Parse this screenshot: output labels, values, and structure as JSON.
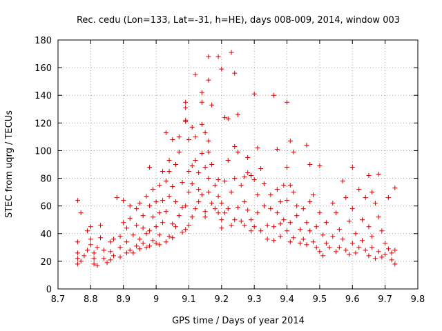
{
  "chart_data": {
    "type": "scatter",
    "title": "Rec. cedu (Lon=133, Lat=-31, h=HE), days 008-009, 2014, window 003",
    "xlabel": "GPS time / Days of year 2014",
    "ylabel": "STEC from uqrg / TECUs",
    "xlim": [
      8.7,
      9.8
    ],
    "ylim": [
      0,
      180
    ],
    "x_ticks": [
      "8.7",
      "8.8",
      "8.9",
      "9",
      "9.1",
      "9.2",
      "9.3",
      "9.4",
      "9.5",
      "9.6",
      "9.7",
      "9.8"
    ],
    "y_ticks": [
      "0",
      "20",
      "40",
      "60",
      "80",
      "100",
      "120",
      "140",
      "160",
      "180"
    ],
    "marker": "+",
    "color": "#cc0000",
    "series": [
      {
        "name": "STEC",
        "points": [
          [
            8.76,
            64
          ],
          [
            8.77,
            55
          ],
          [
            8.76,
            34
          ],
          [
            8.76,
            26
          ],
          [
            8.76,
            22
          ],
          [
            8.76,
            18
          ],
          [
            8.77,
            20
          ],
          [
            8.78,
            24
          ],
          [
            8.79,
            28
          ],
          [
            8.79,
            42
          ],
          [
            8.8,
            45
          ],
          [
            8.8,
            36
          ],
          [
            8.8,
            32
          ],
          [
            8.81,
            26
          ],
          [
            8.81,
            22
          ],
          [
            8.81,
            18
          ],
          [
            8.82,
            17
          ],
          [
            8.82,
            30
          ],
          [
            8.83,
            37
          ],
          [
            8.83,
            46
          ],
          [
            8.84,
            28
          ],
          [
            8.84,
            22
          ],
          [
            8.85,
            19
          ],
          [
            8.86,
            21
          ],
          [
            8.86,
            27
          ],
          [
            8.86,
            34
          ],
          [
            8.87,
            24
          ],
          [
            8.87,
            36
          ],
          [
            8.88,
            66
          ],
          [
            8.89,
            30
          ],
          [
            8.89,
            38
          ],
          [
            8.89,
            23
          ],
          [
            8.9,
            64
          ],
          [
            8.9,
            48
          ],
          [
            8.91,
            26
          ],
          [
            8.91,
            34
          ],
          [
            8.91,
            44
          ],
          [
            8.92,
            60
          ],
          [
            8.92,
            51
          ],
          [
            8.92,
            28
          ],
          [
            8.93,
            39
          ],
          [
            8.93,
            26
          ],
          [
            8.94,
            58
          ],
          [
            8.94,
            46
          ],
          [
            8.94,
            31
          ],
          [
            8.95,
            62
          ],
          [
            8.95,
            36
          ],
          [
            8.95,
            29
          ],
          [
            8.96,
            53
          ],
          [
            8.96,
            44
          ],
          [
            8.96,
            33
          ],
          [
            8.97,
            67
          ],
          [
            8.97,
            40
          ],
          [
            8.97,
            30
          ],
          [
            8.98,
            88
          ],
          [
            8.98,
            60
          ],
          [
            8.98,
            42
          ],
          [
            8.98,
            31
          ],
          [
            8.99,
            52
          ],
          [
            8.99,
            72
          ],
          [
            8.99,
            35
          ],
          [
            9.0,
            63
          ],
          [
            9.0,
            45
          ],
          [
            9.0,
            33
          ],
          [
            9.01,
            75
          ],
          [
            9.01,
            55
          ],
          [
            9.01,
            39
          ],
          [
            9.01,
            32
          ],
          [
            9.02,
            85
          ],
          [
            9.02,
            64
          ],
          [
            9.02,
            48
          ],
          [
            9.03,
            78
          ],
          [
            9.03,
            56
          ],
          [
            9.03,
            34
          ],
          [
            9.03,
            113
          ],
          [
            9.04,
            93
          ],
          [
            9.04,
            85
          ],
          [
            9.04,
            67
          ],
          [
            9.04,
            38
          ],
          [
            9.05,
            108
          ],
          [
            9.05,
            74
          ],
          [
            9.05,
            47
          ],
          [
            9.05,
            37
          ],
          [
            9.06,
            90
          ],
          [
            9.06,
            63
          ],
          [
            9.06,
            45
          ],
          [
            9.07,
            110
          ],
          [
            9.07,
            99
          ],
          [
            9.07,
            53
          ],
          [
            9.08,
            41
          ],
          [
            9.08,
            59
          ],
          [
            9.08,
            77
          ],
          [
            9.09,
            135
          ],
          [
            9.09,
            131
          ],
          [
            9.09,
            122
          ],
          [
            9.09,
            121
          ],
          [
            9.09,
            60
          ],
          [
            9.09,
            43
          ],
          [
            9.1,
            108
          ],
          [
            9.1,
            85
          ],
          [
            9.1,
            70
          ],
          [
            9.1,
            46
          ],
          [
            9.11,
            117
          ],
          [
            9.11,
            89
          ],
          [
            9.11,
            76
          ],
          [
            9.11,
            52
          ],
          [
            9.12,
            155
          ],
          [
            9.12,
            110
          ],
          [
            9.12,
            93
          ],
          [
            9.12,
            58
          ],
          [
            9.13,
            84
          ],
          [
            9.13,
            72
          ],
          [
            9.13,
            63
          ],
          [
            9.14,
            142
          ],
          [
            9.14,
            135
          ],
          [
            9.14,
            119
          ],
          [
            9.14,
            98
          ],
          [
            9.14,
            68
          ],
          [
            9.15,
            113
          ],
          [
            9.15,
            88
          ],
          [
            9.15,
            56
          ],
          [
            9.15,
            52
          ],
          [
            9.16,
            168
          ],
          [
            9.16,
            151
          ],
          [
            9.16,
            107
          ],
          [
            9.16,
            99
          ],
          [
            9.16,
            80
          ],
          [
            9.16,
            70
          ],
          [
            9.17,
            90
          ],
          [
            9.17,
            133
          ],
          [
            9.17,
            62
          ],
          [
            9.18,
            75
          ],
          [
            9.18,
            58
          ],
          [
            9.19,
            168
          ],
          [
            9.19,
            79
          ],
          [
            9.19,
            67
          ],
          [
            9.19,
            55
          ],
          [
            9.2,
            159
          ],
          [
            9.2,
            62
          ],
          [
            9.2,
            50
          ],
          [
            9.2,
            44
          ],
          [
            9.21,
            124
          ],
          [
            9.21,
            78
          ],
          [
            9.21,
            55
          ],
          [
            9.22,
            123
          ],
          [
            9.22,
            93
          ],
          [
            9.22,
            58
          ],
          [
            9.23,
            171
          ],
          [
            9.23,
            70
          ],
          [
            9.23,
            46
          ],
          [
            9.24,
            156
          ],
          [
            9.24,
            103
          ],
          [
            9.24,
            80
          ],
          [
            9.24,
            50
          ],
          [
            9.25,
            126
          ],
          [
            9.25,
            99
          ],
          [
            9.25,
            59
          ],
          [
            9.26,
            75
          ],
          [
            9.26,
            49
          ],
          [
            9.27,
            63
          ],
          [
            9.27,
            81
          ],
          [
            9.27,
            46
          ],
          [
            9.28,
            95
          ],
          [
            9.28,
            84
          ],
          [
            9.28,
            57
          ],
          [
            9.29,
            82
          ],
          [
            9.29,
            50
          ],
          [
            9.29,
            42
          ],
          [
            9.3,
            141
          ],
          [
            9.3,
            79
          ],
          [
            9.3,
            45
          ],
          [
            9.31,
            102
          ],
          [
            9.31,
            68
          ],
          [
            9.31,
            55
          ],
          [
            9.32,
            87
          ],
          [
            9.32,
            42
          ],
          [
            9.33,
            76
          ],
          [
            9.33,
            60
          ],
          [
            9.34,
            46
          ],
          [
            9.34,
            36
          ],
          [
            9.35,
            68
          ],
          [
            9.35,
            58
          ],
          [
            9.36,
            140
          ],
          [
            9.36,
            45
          ],
          [
            9.36,
            35
          ],
          [
            9.37,
            101
          ],
          [
            9.37,
            72
          ],
          [
            9.37,
            55
          ],
          [
            9.38,
            63
          ],
          [
            9.38,
            47
          ],
          [
            9.38,
            38
          ],
          [
            9.39,
            75
          ],
          [
            9.39,
            50
          ],
          [
            9.4,
            135
          ],
          [
            9.4,
            88
          ],
          [
            9.4,
            64
          ],
          [
            9.4,
            42
          ],
          [
            9.41,
            107
          ],
          [
            9.41,
            75
          ],
          [
            9.41,
            48
          ],
          [
            9.41,
            34
          ],
          [
            9.42,
            99
          ],
          [
            9.42,
            70
          ],
          [
            9.42,
            37
          ],
          [
            9.43,
            60
          ],
          [
            9.43,
            53
          ],
          [
            9.44,
            43
          ],
          [
            9.44,
            33
          ],
          [
            9.45,
            58
          ],
          [
            9.45,
            36
          ],
          [
            9.46,
            104
          ],
          [
            9.46,
            48
          ],
          [
            9.46,
            32
          ],
          [
            9.47,
            90
          ],
          [
            9.47,
            63
          ],
          [
            9.47,
            42
          ],
          [
            9.48,
            68
          ],
          [
            9.48,
            34
          ],
          [
            9.49,
            45
          ],
          [
            9.49,
            30
          ],
          [
            9.5,
            89
          ],
          [
            9.5,
            55
          ],
          [
            9.5,
            27
          ],
          [
            9.51,
            39
          ],
          [
            9.51,
            24
          ],
          [
            9.52,
            48
          ],
          [
            9.52,
            33
          ],
          [
            9.53,
            30
          ],
          [
            9.54,
            62
          ],
          [
            9.54,
            38
          ],
          [
            9.55,
            55
          ],
          [
            9.55,
            27
          ],
          [
            9.56,
            43
          ],
          [
            9.56,
            30
          ],
          [
            9.57,
            78
          ],
          [
            9.57,
            36
          ],
          [
            9.58,
            66
          ],
          [
            9.58,
            28
          ],
          [
            9.59,
            49
          ],
          [
            9.59,
            25
          ],
          [
            9.6,
            88
          ],
          [
            9.6,
            58
          ],
          [
            9.6,
            33
          ],
          [
            9.61,
            40
          ],
          [
            9.61,
            26
          ],
          [
            9.62,
            72
          ],
          [
            9.62,
            30
          ],
          [
            9.63,
            50
          ],
          [
            9.63,
            35
          ],
          [
            9.64,
            66
          ],
          [
            9.64,
            28
          ],
          [
            9.65,
            82
          ],
          [
            9.65,
            45
          ],
          [
            9.65,
            24
          ],
          [
            9.66,
            70
          ],
          [
            9.66,
            38
          ],
          [
            9.66,
            30
          ],
          [
            9.67,
            62
          ],
          [
            9.67,
            22
          ],
          [
            9.68,
            83
          ],
          [
            9.68,
            52
          ],
          [
            9.68,
            27
          ],
          [
            9.69,
            42
          ],
          [
            9.69,
            23
          ],
          [
            9.7,
            33
          ],
          [
            9.7,
            25
          ],
          [
            9.71,
            66
          ],
          [
            9.71,
            29
          ],
          [
            9.72,
            21
          ],
          [
            9.72,
            26
          ],
          [
            9.73,
            73
          ],
          [
            9.73,
            28
          ],
          [
            9.73,
            18
          ]
        ]
      }
    ]
  }
}
